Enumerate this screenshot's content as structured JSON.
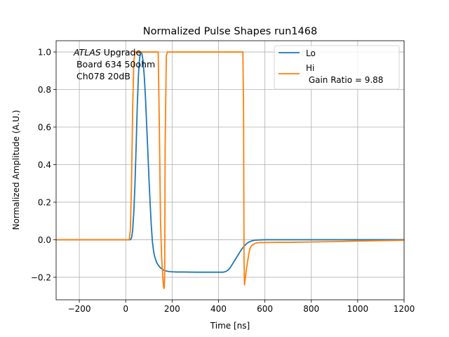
{
  "chart_data": {
    "type": "line",
    "title": "Normalized Pulse Shapes run1468",
    "xlabel": "Time [ns]",
    "ylabel": "Normalized Amplitude (A.U.)",
    "xlim": [
      -300,
      1200
    ],
    "ylim": [
      -0.32,
      1.06
    ],
    "xticks": [
      -200,
      0,
      200,
      400,
      600,
      800,
      1000,
      1200
    ],
    "xtick_labels": [
      "−200",
      "0",
      "200",
      "400",
      "600",
      "800",
      "1000",
      "1200"
    ],
    "yticks": [
      -0.2,
      0.0,
      0.2,
      0.4,
      0.6,
      0.8,
      1.0
    ],
    "ytick_labels": [
      "−0.2",
      "0.0",
      "0.2",
      "0.4",
      "0.6",
      "0.8",
      "1.0"
    ],
    "grid": true,
    "legend_position": "top-right",
    "annotation": {
      "lines": [
        {
          "italic": "ATLAS",
          "rest": " Upgrade"
        },
        {
          "italic": "",
          "rest": " Board 634 50ohm"
        },
        {
          "italic": "",
          "rest": " Ch078 20dB"
        }
      ]
    },
    "series": [
      {
        "name": "Lo",
        "color": "#1f77b4",
        "x": [
          -300,
          0,
          20,
          25,
          30,
          35,
          40,
          45,
          50,
          55,
          60,
          65,
          70,
          75,
          80,
          85,
          90,
          95,
          100,
          105,
          110,
          115,
          120,
          125,
          130,
          135,
          140,
          150,
          160,
          170,
          180,
          190,
          200,
          220,
          250,
          300,
          350,
          400,
          420,
          430,
          440,
          450,
          460,
          470,
          480,
          490,
          500,
          510,
          520,
          530,
          540,
          550,
          560,
          580,
          600,
          650,
          700,
          800,
          1000,
          1200
        ],
        "y": [
          0.0,
          0.0,
          0.0,
          0.01,
          0.05,
          0.15,
          0.3,
          0.5,
          0.72,
          0.88,
          0.97,
          1.0,
          0.99,
          0.95,
          0.87,
          0.76,
          0.62,
          0.48,
          0.33,
          0.2,
          0.08,
          -0.01,
          -0.06,
          -0.09,
          -0.11,
          -0.125,
          -0.135,
          -0.15,
          -0.16,
          -0.165,
          -0.168,
          -0.17,
          -0.171,
          -0.172,
          -0.172,
          -0.173,
          -0.173,
          -0.173,
          -0.173,
          -0.17,
          -0.163,
          -0.15,
          -0.13,
          -0.11,
          -0.09,
          -0.07,
          -0.05,
          -0.035,
          -0.022,
          -0.013,
          -0.008,
          -0.004,
          -0.002,
          -0.001,
          0.0,
          0.0,
          0.0,
          0.0,
          0.0,
          0.0
        ]
      },
      {
        "name": "Hi\n Gain Ratio = 9.88",
        "color": "#ff7f0e",
        "x": [
          -300,
          0,
          15,
          20,
          25,
          30,
          35,
          40,
          45,
          140,
          145,
          150,
          155,
          160,
          163,
          166,
          168,
          170,
          175,
          180,
          500,
          505,
          508,
          510,
          512,
          515,
          520,
          525,
          530,
          535,
          540,
          550,
          560,
          580,
          600,
          650,
          700,
          800,
          900,
          1000,
          1100,
          1200
        ],
        "y": [
          0.0,
          0.0,
          0.0,
          0.05,
          0.3,
          0.7,
          0.95,
          1.0,
          1.0,
          1.0,
          0.6,
          0.1,
          -0.1,
          -0.2,
          -0.25,
          -0.26,
          -0.18,
          0.5,
          0.98,
          1.0,
          1.0,
          1.0,
          0.7,
          -0.1,
          -0.24,
          -0.21,
          -0.16,
          -0.12,
          -0.08,
          -0.05,
          -0.035,
          -0.025,
          -0.018,
          -0.015,
          -0.015,
          -0.014,
          -0.014,
          -0.012,
          -0.01,
          -0.007,
          -0.005,
          -0.003
        ]
      }
    ]
  }
}
